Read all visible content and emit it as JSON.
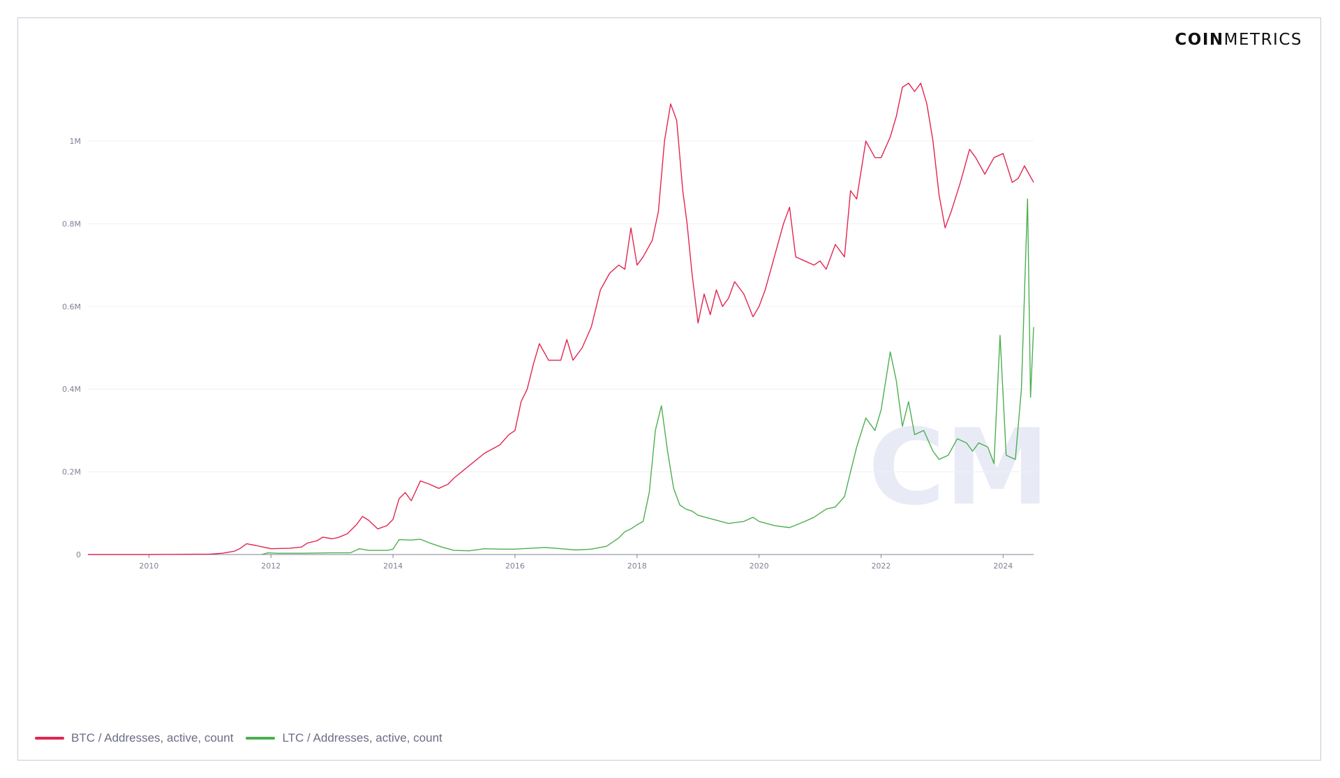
{
  "brand": {
    "bold": "COIN",
    "light": "METRICS"
  },
  "watermark": "CM",
  "chart_data": {
    "type": "line",
    "title": "",
    "xlabel": "",
    "ylabel": "",
    "xlim": [
      2009.0,
      2024.5
    ],
    "ylim": [
      0,
      1200000
    ],
    "y_ticks": [
      {
        "value": 0,
        "label": "0"
      },
      {
        "value": 200000,
        "label": "0.2M"
      },
      {
        "value": 400000,
        "label": "0.4M"
      },
      {
        "value": 600000,
        "label": "0.6M"
      },
      {
        "value": 800000,
        "label": "0.8M"
      },
      {
        "value": 1000000,
        "label": "1M"
      }
    ],
    "x_ticks": [
      "2010",
      "2012",
      "2014",
      "2016",
      "2018",
      "2020",
      "2022",
      "2024"
    ],
    "grid": true,
    "legend_position": "bottom-left",
    "series": [
      {
        "name": "BTC / Addresses, active, count",
        "color": "#e2254f",
        "points": [
          [
            2009.0,
            0
          ],
          [
            2010.0,
            0
          ],
          [
            2011.0,
            1000
          ],
          [
            2011.2,
            3000
          ],
          [
            2011.4,
            8000
          ],
          [
            2011.5,
            15000
          ],
          [
            2011.6,
            26000
          ],
          [
            2011.75,
            22000
          ],
          [
            2012.0,
            14000
          ],
          [
            2012.3,
            15000
          ],
          [
            2012.5,
            18000
          ],
          [
            2012.6,
            28000
          ],
          [
            2012.75,
            33000
          ],
          [
            2012.85,
            42000
          ],
          [
            2013.0,
            38000
          ],
          [
            2013.1,
            41000
          ],
          [
            2013.25,
            50000
          ],
          [
            2013.4,
            72000
          ],
          [
            2013.5,
            92000
          ],
          [
            2013.6,
            83000
          ],
          [
            2013.75,
            62000
          ],
          [
            2013.9,
            70000
          ],
          [
            2014.0,
            85000
          ],
          [
            2014.1,
            135000
          ],
          [
            2014.2,
            150000
          ],
          [
            2014.3,
            130000
          ],
          [
            2014.45,
            178000
          ],
          [
            2014.6,
            170000
          ],
          [
            2014.75,
            160000
          ],
          [
            2014.9,
            170000
          ],
          [
            2015.0,
            185000
          ],
          [
            2015.25,
            215000
          ],
          [
            2015.5,
            245000
          ],
          [
            2015.75,
            265000
          ],
          [
            2015.9,
            290000
          ],
          [
            2016.0,
            300000
          ],
          [
            2016.1,
            370000
          ],
          [
            2016.2,
            400000
          ],
          [
            2016.3,
            460000
          ],
          [
            2016.4,
            510000
          ],
          [
            2016.55,
            470000
          ],
          [
            2016.75,
            470000
          ],
          [
            2016.85,
            520000
          ],
          [
            2016.95,
            470000
          ],
          [
            2017.1,
            500000
          ],
          [
            2017.25,
            550000
          ],
          [
            2017.4,
            640000
          ],
          [
            2017.55,
            680000
          ],
          [
            2017.7,
            700000
          ],
          [
            2017.8,
            690000
          ],
          [
            2017.9,
            790000
          ],
          [
            2018.0,
            700000
          ],
          [
            2018.1,
            720000
          ],
          [
            2018.25,
            760000
          ],
          [
            2018.35,
            830000
          ],
          [
            2018.45,
            1000000
          ],
          [
            2018.55,
            1090000
          ],
          [
            2018.65,
            1050000
          ],
          [
            2018.75,
            880000
          ],
          [
            2018.82,
            800000
          ],
          [
            2018.9,
            680000
          ],
          [
            2019.0,
            560000
          ],
          [
            2019.1,
            630000
          ],
          [
            2019.2,
            580000
          ],
          [
            2019.3,
            640000
          ],
          [
            2019.4,
            600000
          ],
          [
            2019.5,
            620000
          ],
          [
            2019.6,
            660000
          ],
          [
            2019.75,
            630000
          ],
          [
            2019.9,
            575000
          ],
          [
            2020.0,
            600000
          ],
          [
            2020.1,
            640000
          ],
          [
            2020.25,
            720000
          ],
          [
            2020.4,
            800000
          ],
          [
            2020.5,
            840000
          ],
          [
            2020.6,
            720000
          ],
          [
            2020.75,
            710000
          ],
          [
            2020.9,
            700000
          ],
          [
            2021.0,
            710000
          ],
          [
            2021.1,
            690000
          ],
          [
            2021.25,
            750000
          ],
          [
            2021.4,
            720000
          ],
          [
            2021.5,
            880000
          ],
          [
            2021.6,
            860000
          ],
          [
            2021.75,
            1000000
          ],
          [
            2021.9,
            960000
          ],
          [
            2022.0,
            960000
          ],
          [
            2022.15,
            1010000
          ],
          [
            2022.25,
            1060000
          ],
          [
            2022.35,
            1130000
          ],
          [
            2022.45,
            1140000
          ],
          [
            2022.55,
            1120000
          ],
          [
            2022.65,
            1140000
          ],
          [
            2022.75,
            1090000
          ],
          [
            2022.85,
            1000000
          ],
          [
            2022.95,
            870000
          ],
          [
            2023.05,
            790000
          ],
          [
            2023.15,
            830000
          ],
          [
            2023.3,
            900000
          ],
          [
            2023.45,
            980000
          ],
          [
            2023.55,
            960000
          ],
          [
            2023.7,
            920000
          ],
          [
            2023.85,
            960000
          ],
          [
            2024.0,
            970000
          ],
          [
            2024.15,
            900000
          ],
          [
            2024.25,
            910000
          ],
          [
            2024.35,
            940000
          ],
          [
            2024.5,
            900000
          ]
        ]
      },
      {
        "name": "LTC / Addresses, active, count",
        "color": "#4caf50",
        "points": [
          [
            2011.85,
            0
          ],
          [
            2011.95,
            4000
          ],
          [
            2012.1,
            3000
          ],
          [
            2012.5,
            3000
          ],
          [
            2013.0,
            4000
          ],
          [
            2013.3,
            4000
          ],
          [
            2013.45,
            14000
          ],
          [
            2013.6,
            10000
          ],
          [
            2013.9,
            10000
          ],
          [
            2014.0,
            13000
          ],
          [
            2014.1,
            36000
          ],
          [
            2014.3,
            35000
          ],
          [
            2014.45,
            37000
          ],
          [
            2014.6,
            28000
          ],
          [
            2014.8,
            18000
          ],
          [
            2015.0,
            10000
          ],
          [
            2015.25,
            9000
          ],
          [
            2015.5,
            14000
          ],
          [
            2015.75,
            13000
          ],
          [
            2016.0,
            13000
          ],
          [
            2016.25,
            15000
          ],
          [
            2016.5,
            17000
          ],
          [
            2016.75,
            14000
          ],
          [
            2017.0,
            11000
          ],
          [
            2017.25,
            13000
          ],
          [
            2017.5,
            20000
          ],
          [
            2017.7,
            40000
          ],
          [
            2017.8,
            55000
          ],
          [
            2017.9,
            62000
          ],
          [
            2018.0,
            72000
          ],
          [
            2018.1,
            80000
          ],
          [
            2018.2,
            150000
          ],
          [
            2018.3,
            300000
          ],
          [
            2018.4,
            360000
          ],
          [
            2018.5,
            250000
          ],
          [
            2018.6,
            160000
          ],
          [
            2018.7,
            120000
          ],
          [
            2018.8,
            110000
          ],
          [
            2018.9,
            105000
          ],
          [
            2019.0,
            95000
          ],
          [
            2019.25,
            85000
          ],
          [
            2019.5,
            75000
          ],
          [
            2019.75,
            80000
          ],
          [
            2019.9,
            90000
          ],
          [
            2020.0,
            80000
          ],
          [
            2020.25,
            70000
          ],
          [
            2020.5,
            65000
          ],
          [
            2020.75,
            80000
          ],
          [
            2020.9,
            90000
          ],
          [
            2021.0,
            100000
          ],
          [
            2021.1,
            110000
          ],
          [
            2021.25,
            115000
          ],
          [
            2021.4,
            140000
          ],
          [
            2021.5,
            200000
          ],
          [
            2021.6,
            260000
          ],
          [
            2021.75,
            330000
          ],
          [
            2021.9,
            300000
          ],
          [
            2022.0,
            350000
          ],
          [
            2022.15,
            490000
          ],
          [
            2022.25,
            420000
          ],
          [
            2022.35,
            310000
          ],
          [
            2022.45,
            370000
          ],
          [
            2022.55,
            290000
          ],
          [
            2022.7,
            300000
          ],
          [
            2022.85,
            250000
          ],
          [
            2022.95,
            230000
          ],
          [
            2023.1,
            240000
          ],
          [
            2023.25,
            280000
          ],
          [
            2023.4,
            270000
          ],
          [
            2023.5,
            250000
          ],
          [
            2023.6,
            270000
          ],
          [
            2023.75,
            260000
          ],
          [
            2023.85,
            220000
          ],
          [
            2023.95,
            530000
          ],
          [
            2024.05,
            240000
          ],
          [
            2024.2,
            230000
          ],
          [
            2024.3,
            400000
          ],
          [
            2024.4,
            860000
          ],
          [
            2024.45,
            380000
          ],
          [
            2024.5,
            550000
          ]
        ]
      }
    ]
  }
}
